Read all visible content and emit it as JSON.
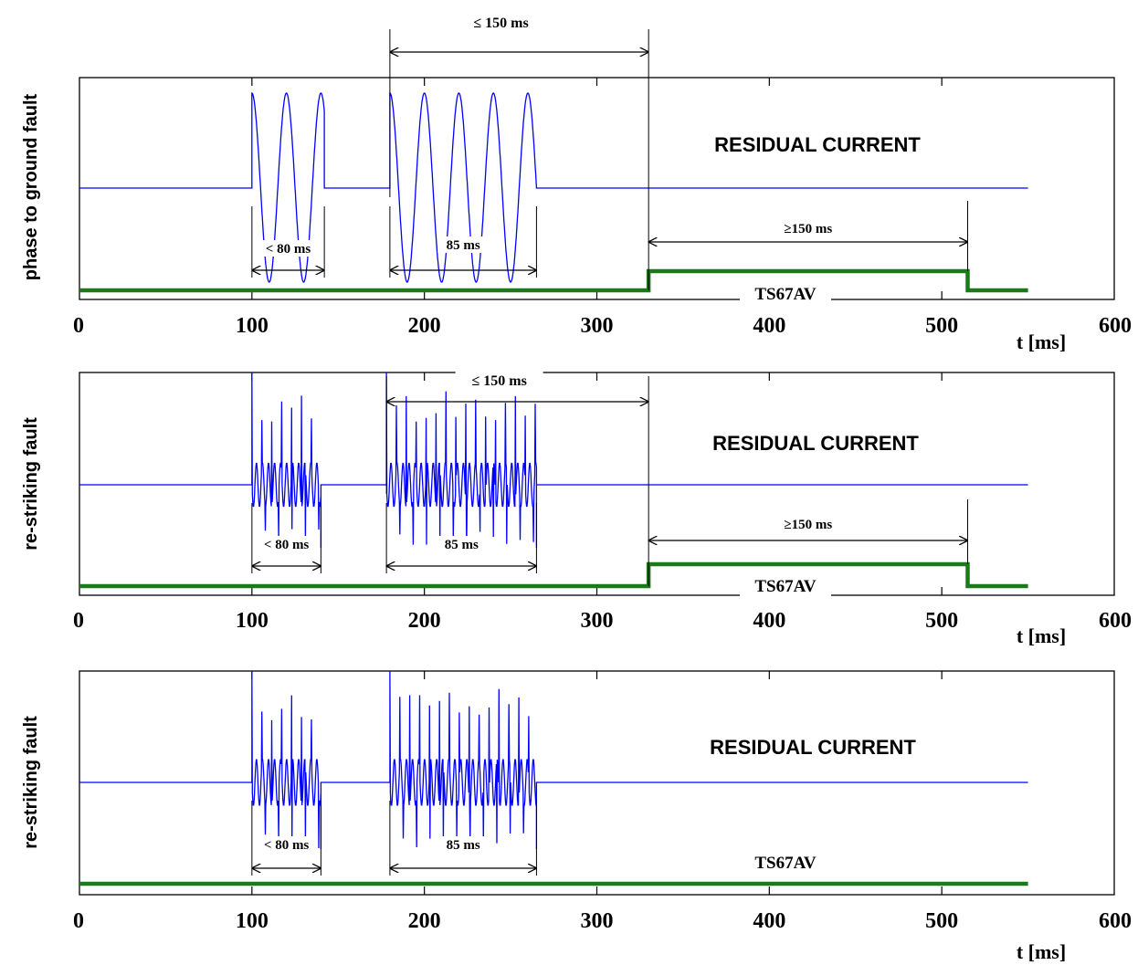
{
  "chart_data": [
    {
      "type": "line",
      "ylabel": "phase to ground fault",
      "xlabel": "t [ms]",
      "xlim": [
        0,
        600
      ],
      "xticks": [
        "0",
        "100",
        "200",
        "300",
        "400",
        "500",
        "600"
      ],
      "signal_label": "RESIDUAL CURRENT",
      "signal_kind": "sinusoidal",
      "bursts_ms": [
        [
          100,
          142
        ],
        [
          180,
          265
        ]
      ],
      "output_label": "TS67AV",
      "output_steps_ms": [
        [
          330,
          515
        ]
      ],
      "annotations": {
        "burst1": "< 80 ms",
        "burst2": "85 ms",
        "gap": "≤ 150 ms",
        "gap_range_ms": [
          180,
          330
        ],
        "output_duration": "≥150 ms",
        "output_range_ms": [
          330,
          515
        ]
      }
    },
    {
      "type": "line",
      "ylabel": "re-striking fault",
      "xlabel": "t [ms]",
      "xlim": [
        0,
        600
      ],
      "xticks": [
        "0",
        "100",
        "200",
        "300",
        "400",
        "500",
        "600"
      ],
      "signal_label": "RESIDUAL CURRENT",
      "signal_kind": "re-striking",
      "bursts_ms": [
        [
          100,
          140
        ],
        [
          178,
          265
        ]
      ],
      "output_label": "TS67AV",
      "output_steps_ms": [
        [
          330,
          515
        ]
      ],
      "annotations": {
        "burst1": "< 80 ms",
        "burst2": "85 ms",
        "gap": "≤ 150 ms",
        "gap_range_ms": [
          178,
          330
        ],
        "output_duration": "≥150 ms",
        "output_range_ms": [
          330,
          515
        ]
      }
    },
    {
      "type": "line",
      "ylabel": "re-striking fault",
      "xlabel": "t [ms]",
      "xlim": [
        0,
        600
      ],
      "xticks": [
        "0",
        "100",
        "200",
        "300",
        "400",
        "500",
        "600"
      ],
      "signal_label": "RESIDUAL CURRENT",
      "signal_kind": "re-striking",
      "bursts_ms": [
        [
          100,
          140
        ],
        [
          180,
          265
        ]
      ],
      "output_label": "TS67AV",
      "output_steps_ms": [],
      "annotations": {
        "burst1": "< 80 ms",
        "burst2": "85 ms"
      }
    }
  ],
  "colors": {
    "signal": "#0000ff",
    "output": "#1a7a1a",
    "frame": "#000000"
  }
}
